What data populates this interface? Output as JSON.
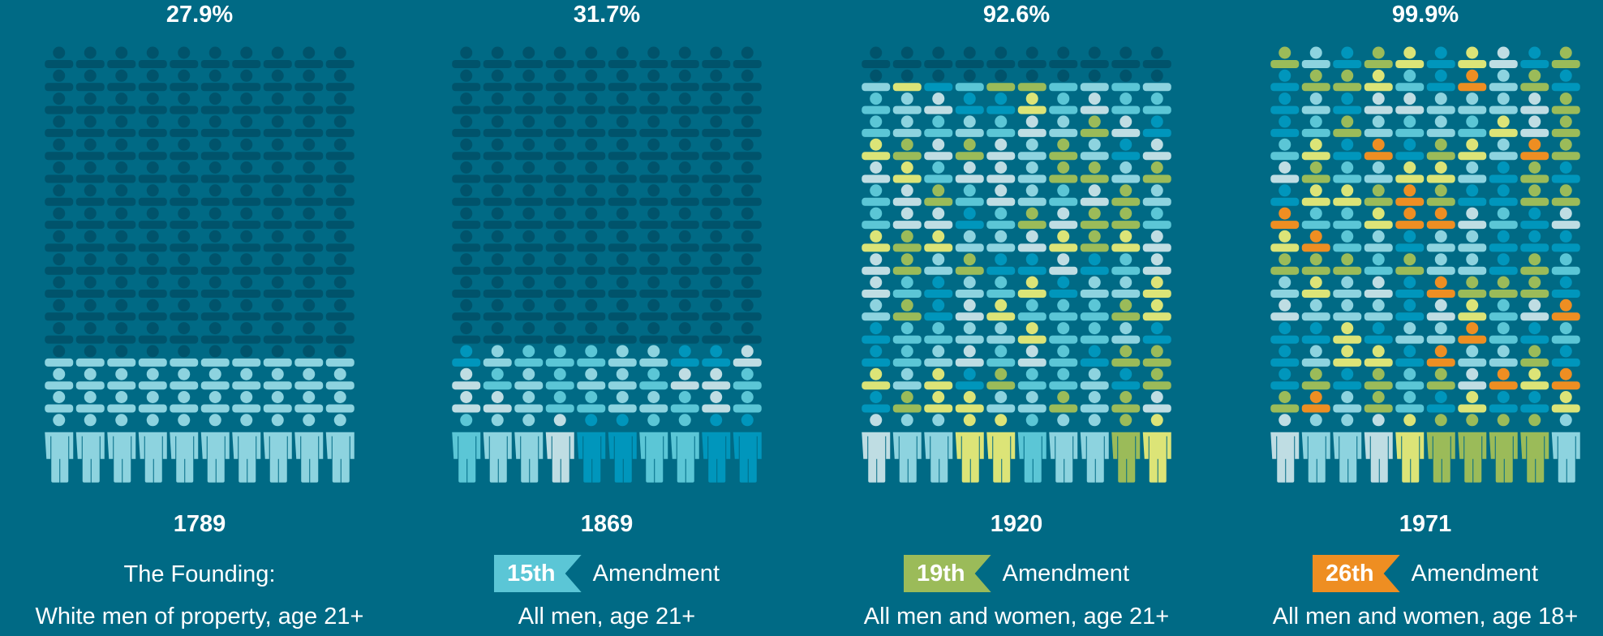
{
  "colors": {
    "background": "#006A85",
    "inactive": "#00536B",
    "teal": "#5BC6D6",
    "light_blue": "#8DD3DF",
    "pale_blue": "#BFDDE3",
    "blue": "#0096BC",
    "olive": "#9BBB59",
    "yellow": "#DCE477",
    "orange": "#EE8E22"
  },
  "chart_data": {
    "type": "pictogram",
    "icons_per_row": 10,
    "icon_rows": 17,
    "panels": [
      {
        "percent": "27.9%",
        "value": 27.9,
        "year": "1789",
        "label_line1": "The Founding:",
        "badge": "",
        "badge_color": "",
        "amendment": "",
        "subtitle": "White men of property, age 21+",
        "filled_rows": 3.5,
        "palette": [
          "#8DD3DF"
        ]
      },
      {
        "percent": "31.7%",
        "value": 31.7,
        "year": "1869",
        "label_line1": "",
        "badge": "15th",
        "badge_color": "#5BC6D6",
        "amendment": "Amendment",
        "subtitle": "All men, age 21+",
        "filled_rows": 4,
        "palette": [
          "#5BC6D6",
          "#8DD3DF",
          "#BFDDE3",
          "#0096BC"
        ]
      },
      {
        "percent": "92.6%",
        "value": 92.6,
        "year": "1920",
        "label_line1": "",
        "badge": "19th",
        "badge_color": "#9BBB59",
        "amendment": "Amendment",
        "subtitle": "All men and women, age 21+",
        "filled_rows": 15.5,
        "palette": [
          "#5BC6D6",
          "#8DD3DF",
          "#BFDDE3",
          "#0096BC",
          "#9BBB59",
          "#DCE477"
        ]
      },
      {
        "percent": "99.9%",
        "value": 99.9,
        "year": "1971",
        "label_line1": "",
        "badge": "26th",
        "badge_color": "#EE8E22",
        "amendment": "Amendment",
        "subtitle": "All men and women, age 18+",
        "filled_rows": 17,
        "palette": [
          "#5BC6D6",
          "#8DD3DF",
          "#BFDDE3",
          "#0096BC",
          "#9BBB59",
          "#DCE477",
          "#9BBB59",
          "#0096BC",
          "#EE8E22"
        ]
      }
    ]
  }
}
